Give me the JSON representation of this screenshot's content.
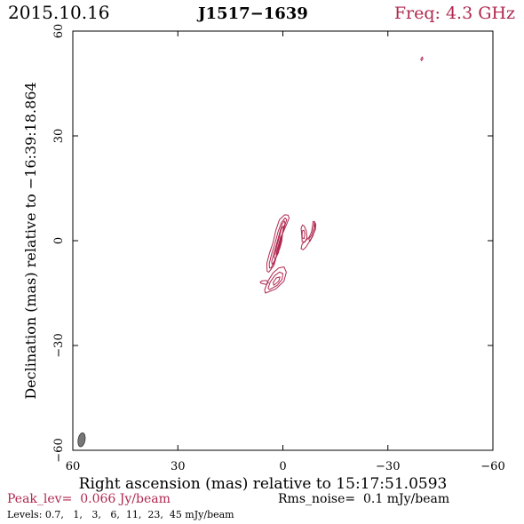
{
  "chart_data": {
    "type": "contour",
    "header": {
      "date": "2015.10.16",
      "source": "J1517−1639",
      "freq": "Freq: 4.3 GHz"
    },
    "xlabel": "Right ascension (mas) relative to 15:17:51.0593",
    "ylabel": "Declination (mas) relative to −16:39:18.864",
    "xlim": [
      60,
      -60
    ],
    "ylim": [
      -60,
      60
    ],
    "x_ticks": [
      60,
      30,
      0,
      -30,
      -60
    ],
    "y_ticks": [
      -60,
      -30,
      0,
      30,
      60
    ],
    "x_tick_labels": [
      "60",
      "30",
      "0",
      "−30",
      "−60"
    ],
    "y_tick_labels": [
      "−60",
      "−30",
      "0",
      "30",
      "60"
    ],
    "footer": {
      "peak": "Peak_lev=  0.066 Jy/beam",
      "rms": "Rms_noise=  0.1 mJy/beam",
      "levels": "Levels: 0.7,   1,   3,   6,  11,  23,  45 mJy/beam"
    },
    "colors": {
      "contour": "#b0284f",
      "header_freq": "#b0284f",
      "peak_text": "#b0284f",
      "beam": "#777777",
      "axes": "#000000"
    },
    "contours": [
      {
        "level": 0.7,
        "points": [
          [
            4,
            -9
          ],
          [
            2.5,
            -7
          ],
          [
            1.5,
            -3
          ],
          [
            0.5,
            1
          ],
          [
            -1,
            4.5
          ],
          [
            -1.8,
            6.5
          ],
          [
            -1.5,
            7.3
          ],
          [
            -0.5,
            7.4
          ],
          [
            1,
            6
          ],
          [
            2,
            3
          ],
          [
            2.8,
            -0.5
          ],
          [
            3.8,
            -3.5
          ],
          [
            4.6,
            -6.5
          ],
          [
            4.5,
            -8.8
          ]
        ]
      },
      {
        "level": 1,
        "points": [
          [
            3.4,
            -7.8
          ],
          [
            2.2,
            -5.8
          ],
          [
            1.2,
            -2
          ],
          [
            0.2,
            1.8
          ],
          [
            -0.7,
            4.8
          ],
          [
            -1.1,
            6
          ],
          [
            -0.6,
            6.5
          ],
          [
            0.4,
            5.2
          ],
          [
            1.4,
            2.5
          ],
          [
            2.2,
            -0.6
          ],
          [
            3.2,
            -3.8
          ],
          [
            3.9,
            -6.6
          ],
          [
            3.8,
            -7.8
          ]
        ]
      },
      {
        "level": 3,
        "points": [
          [
            2.8,
            -6.5
          ],
          [
            1.8,
            -4.5
          ],
          [
            0.9,
            -1
          ],
          [
            0,
            2.5
          ],
          [
            -0.6,
            5
          ],
          [
            -0.4,
            5.7
          ],
          [
            0.2,
            4.8
          ],
          [
            1,
            2
          ],
          [
            1.8,
            -1
          ],
          [
            2.7,
            -4
          ],
          [
            3.2,
            -6
          ],
          [
            3.1,
            -6.7
          ]
        ]
      },
      {
        "level": 6,
        "points": [
          [
            2.2,
            -5.3
          ],
          [
            1.3,
            -3.5
          ],
          [
            0.6,
            -0.3
          ],
          [
            0,
            2.8
          ],
          [
            -0.2,
            4.2
          ],
          [
            0.4,
            3.5
          ],
          [
            1.1,
            0.8
          ],
          [
            1.9,
            -2.2
          ],
          [
            2.5,
            -4.8
          ]
        ]
      },
      {
        "level": 11,
        "points": [
          [
            1.6,
            -3.8
          ],
          [
            0.9,
            -2.2
          ],
          [
            0.3,
            0
          ],
          [
            0.1,
            1.8
          ],
          [
            0.6,
            1.2
          ],
          [
            1.2,
            -1
          ],
          [
            1.8,
            -3
          ],
          [
            1.9,
            -3.9
          ]
        ]
      },
      {
        "level": 23,
        "points": [
          [
            1.1,
            -2.4
          ],
          [
            0.6,
            -1.2
          ],
          [
            0.3,
            0.2
          ],
          [
            0.7,
            -0.2
          ],
          [
            1.2,
            -1.3
          ],
          [
            1.4,
            -2.3
          ]
        ]
      },
      {
        "level": 45,
        "points": [
          [
            0.8,
            -1.2
          ],
          [
            0.5,
            -0.4
          ],
          [
            0.8,
            -0.1
          ],
          [
            1.1,
            -0.7
          ],
          [
            1.1,
            -1.2
          ]
        ]
      },
      {
        "level": 0.7,
        "points": [
          [
            5,
            -15
          ],
          [
            2,
            -13.8
          ],
          [
            -0.3,
            -11.6
          ],
          [
            -1,
            -9
          ],
          [
            -0.3,
            -7.5
          ],
          [
            1.2,
            -7.8
          ],
          [
            2.8,
            -9.2
          ],
          [
            4.2,
            -11.5
          ],
          [
            5.2,
            -14
          ]
        ]
      },
      {
        "level": 1,
        "points": [
          [
            3.8,
            -14
          ],
          [
            1.6,
            -12.8
          ],
          [
            0.2,
            -11
          ],
          [
            0,
            -9.4
          ],
          [
            1,
            -9
          ],
          [
            2.3,
            -10
          ],
          [
            3.6,
            -11.8
          ],
          [
            4.2,
            -13.6
          ]
        ]
      },
      {
        "level": 3,
        "points": [
          [
            2.6,
            -12.8
          ],
          [
            1.2,
            -11.6
          ],
          [
            0.8,
            -10.4
          ],
          [
            1.8,
            -10.6
          ],
          [
            2.8,
            -12
          ]
        ]
      },
      {
        "level": 0.7,
        "points": [
          [
            6.2,
            -12.2
          ],
          [
            4.8,
            -12.5
          ],
          [
            4.1,
            -12
          ],
          [
            4.7,
            -11.4
          ],
          [
            6,
            -11.5
          ],
          [
            6.5,
            -11.9
          ]
        ]
      },
      {
        "level": 0.7,
        "points": [
          [
            -9,
            5.5
          ],
          [
            -8.6,
            5.5
          ],
          [
            -8.5,
            4.5
          ],
          [
            -8.2,
            2.5
          ],
          [
            -7.5,
            1
          ],
          [
            -6.5,
            0
          ],
          [
            -5.5,
            -1
          ],
          [
            -5.2,
            -2.3
          ],
          [
            -5.8,
            -2.6
          ],
          [
            -6.6,
            -1.8
          ],
          [
            -7.6,
            -0.2
          ],
          [
            -8.6,
            1.6
          ],
          [
            -9.3,
            3.3
          ],
          [
            -9.4,
            4.7
          ]
        ]
      },
      {
        "level": 1,
        "points": [
          [
            -9,
            5.3
          ],
          [
            -8.8,
            3.6
          ],
          [
            -8.3,
            1.7
          ],
          [
            -7.4,
            0.5
          ],
          [
            -7.7,
            -0.2
          ],
          [
            -8.6,
            1.4
          ],
          [
            -9.2,
            3.6
          ]
        ]
      },
      {
        "level": 0.7,
        "points": [
          [
            -5.6,
            4.5
          ],
          [
            -5.2,
            3.5
          ],
          [
            -5.4,
            1.6
          ],
          [
            -5.5,
            -0.3
          ],
          [
            -6.4,
            -0.3
          ],
          [
            -6.9,
            1
          ],
          [
            -6.7,
            2.8
          ],
          [
            -6.1,
            4.2
          ]
        ]
      },
      {
        "level": 1,
        "points": [
          [
            -5.5,
            2.8
          ],
          [
            -5.5,
            0.8
          ],
          [
            -6.1,
            0.6
          ],
          [
            -6.3,
            2
          ],
          [
            -6,
            3
          ]
        ]
      },
      {
        "level": 0.7,
        "points": [
          [
            -39.8,
            52.6
          ],
          [
            -40,
            52.1
          ],
          [
            -39.6,
            51.5
          ],
          [
            -39.4,
            52
          ]
        ]
      }
    ],
    "beam": {
      "x": 57.5,
      "y": -57,
      "major_mas": 4,
      "minor_mas": 2,
      "pa_deg": 10
    }
  }
}
